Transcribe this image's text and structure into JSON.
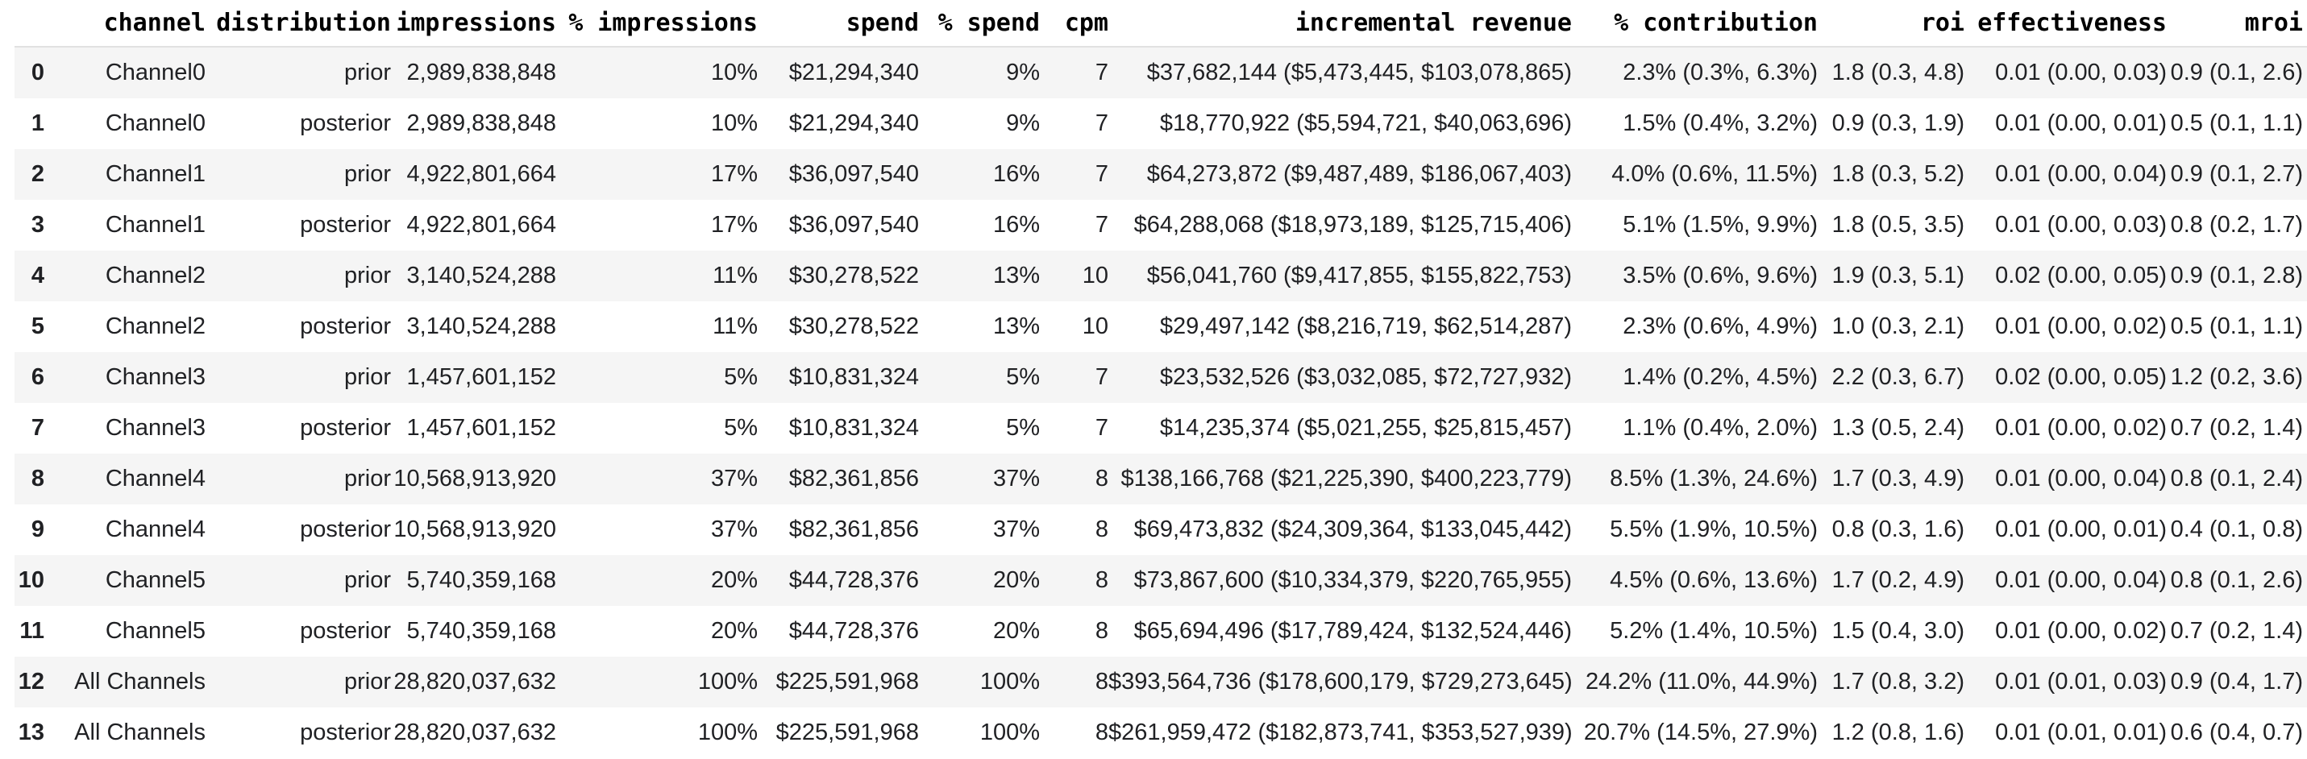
{
  "chart_data": {
    "type": "table",
    "title": "Media summary table (prior vs posterior by channel)",
    "columns": [
      {
        "key": "index",
        "label": ""
      },
      {
        "key": "channel",
        "label": "channel"
      },
      {
        "key": "distribution",
        "label": "distribution"
      },
      {
        "key": "impressions",
        "label": "impressions"
      },
      {
        "key": "pct_impressions",
        "label": "% impressions"
      },
      {
        "key": "spend",
        "label": "spend"
      },
      {
        "key": "pct_spend",
        "label": "% spend"
      },
      {
        "key": "cpm",
        "label": "cpm"
      },
      {
        "key": "incremental_revenue",
        "label": "incremental revenue"
      },
      {
        "key": "pct_contribution",
        "label": "% contribution"
      },
      {
        "key": "roi",
        "label": "roi"
      },
      {
        "key": "effectiveness",
        "label": "effectiveness"
      },
      {
        "key": "mroi",
        "label": "mroi"
      }
    ],
    "rows": [
      {
        "index": "0",
        "channel": "Channel0",
        "distribution": "prior",
        "impressions": "2,989,838,848",
        "pct_impressions": "10%",
        "spend": "$21,294,340",
        "pct_spend": "9%",
        "cpm": "7",
        "incremental_revenue": "$37,682,144 ($5,473,445, $103,078,865)",
        "pct_contribution": "2.3% (0.3%, 6.3%)",
        "roi": "1.8 (0.3, 4.8)",
        "effectiveness": "0.01 (0.00, 0.03)",
        "mroi": "0.9 (0.1, 2.6)"
      },
      {
        "index": "1",
        "channel": "Channel0",
        "distribution": "posterior",
        "impressions": "2,989,838,848",
        "pct_impressions": "10%",
        "spend": "$21,294,340",
        "pct_spend": "9%",
        "cpm": "7",
        "incremental_revenue": "$18,770,922 ($5,594,721, $40,063,696)",
        "pct_contribution": "1.5% (0.4%, 3.2%)",
        "roi": "0.9 (0.3, 1.9)",
        "effectiveness": "0.01 (0.00, 0.01)",
        "mroi": "0.5 (0.1, 1.1)"
      },
      {
        "index": "2",
        "channel": "Channel1",
        "distribution": "prior",
        "impressions": "4,922,801,664",
        "pct_impressions": "17%",
        "spend": "$36,097,540",
        "pct_spend": "16%",
        "cpm": "7",
        "incremental_revenue": "$64,273,872 ($9,487,489, $186,067,403)",
        "pct_contribution": "4.0% (0.6%, 11.5%)",
        "roi": "1.8 (0.3, 5.2)",
        "effectiveness": "0.01 (0.00, 0.04)",
        "mroi": "0.9 (0.1, 2.7)"
      },
      {
        "index": "3",
        "channel": "Channel1",
        "distribution": "posterior",
        "impressions": "4,922,801,664",
        "pct_impressions": "17%",
        "spend": "$36,097,540",
        "pct_spend": "16%",
        "cpm": "7",
        "incremental_revenue": "$64,288,068 ($18,973,189, $125,715,406)",
        "pct_contribution": "5.1% (1.5%, 9.9%)",
        "roi": "1.8 (0.5, 3.5)",
        "effectiveness": "0.01 (0.00, 0.03)",
        "mroi": "0.8 (0.2, 1.7)"
      },
      {
        "index": "4",
        "channel": "Channel2",
        "distribution": "prior",
        "impressions": "3,140,524,288",
        "pct_impressions": "11%",
        "spend": "$30,278,522",
        "pct_spend": "13%",
        "cpm": "10",
        "incremental_revenue": "$56,041,760 ($9,417,855, $155,822,753)",
        "pct_contribution": "3.5% (0.6%, 9.6%)",
        "roi": "1.9 (0.3, 5.1)",
        "effectiveness": "0.02 (0.00, 0.05)",
        "mroi": "0.9 (0.1, 2.8)"
      },
      {
        "index": "5",
        "channel": "Channel2",
        "distribution": "posterior",
        "impressions": "3,140,524,288",
        "pct_impressions": "11%",
        "spend": "$30,278,522",
        "pct_spend": "13%",
        "cpm": "10",
        "incremental_revenue": "$29,497,142 ($8,216,719, $62,514,287)",
        "pct_contribution": "2.3% (0.6%, 4.9%)",
        "roi": "1.0 (0.3, 2.1)",
        "effectiveness": "0.01 (0.00, 0.02)",
        "mroi": "0.5 (0.1, 1.1)"
      },
      {
        "index": "6",
        "channel": "Channel3",
        "distribution": "prior",
        "impressions": "1,457,601,152",
        "pct_impressions": "5%",
        "spend": "$10,831,324",
        "pct_spend": "5%",
        "cpm": "7",
        "incremental_revenue": "$23,532,526 ($3,032,085, $72,727,932)",
        "pct_contribution": "1.4% (0.2%, 4.5%)",
        "roi": "2.2 (0.3, 6.7)",
        "effectiveness": "0.02 (0.00, 0.05)",
        "mroi": "1.2 (0.2, 3.6)"
      },
      {
        "index": "7",
        "channel": "Channel3",
        "distribution": "posterior",
        "impressions": "1,457,601,152",
        "pct_impressions": "5%",
        "spend": "$10,831,324",
        "pct_spend": "5%",
        "cpm": "7",
        "incremental_revenue": "$14,235,374 ($5,021,255, $25,815,457)",
        "pct_contribution": "1.1% (0.4%, 2.0%)",
        "roi": "1.3 (0.5, 2.4)",
        "effectiveness": "0.01 (0.00, 0.02)",
        "mroi": "0.7 (0.2, 1.4)"
      },
      {
        "index": "8",
        "channel": "Channel4",
        "distribution": "prior",
        "impressions": "10,568,913,920",
        "pct_impressions": "37%",
        "spend": "$82,361,856",
        "pct_spend": "37%",
        "cpm": "8",
        "incremental_revenue": "$138,166,768 ($21,225,390, $400,223,779)",
        "pct_contribution": "8.5% (1.3%, 24.6%)",
        "roi": "1.7 (0.3, 4.9)",
        "effectiveness": "0.01 (0.00, 0.04)",
        "mroi": "0.8 (0.1, 2.4)"
      },
      {
        "index": "9",
        "channel": "Channel4",
        "distribution": "posterior",
        "impressions": "10,568,913,920",
        "pct_impressions": "37%",
        "spend": "$82,361,856",
        "pct_spend": "37%",
        "cpm": "8",
        "incremental_revenue": "$69,473,832 ($24,309,364, $133,045,442)",
        "pct_contribution": "5.5% (1.9%, 10.5%)",
        "roi": "0.8 (0.3, 1.6)",
        "effectiveness": "0.01 (0.00, 0.01)",
        "mroi": "0.4 (0.1, 0.8)"
      },
      {
        "index": "10",
        "channel": "Channel5",
        "distribution": "prior",
        "impressions": "5,740,359,168",
        "pct_impressions": "20%",
        "spend": "$44,728,376",
        "pct_spend": "20%",
        "cpm": "8",
        "incremental_revenue": "$73,867,600 ($10,334,379, $220,765,955)",
        "pct_contribution": "4.5% (0.6%, 13.6%)",
        "roi": "1.7 (0.2, 4.9)",
        "effectiveness": "0.01 (0.00, 0.04)",
        "mroi": "0.8 (0.1, 2.6)"
      },
      {
        "index": "11",
        "channel": "Channel5",
        "distribution": "posterior",
        "impressions": "5,740,359,168",
        "pct_impressions": "20%",
        "spend": "$44,728,376",
        "pct_spend": "20%",
        "cpm": "8",
        "incremental_revenue": "$65,694,496 ($17,789,424, $132,524,446)",
        "pct_contribution": "5.2% (1.4%, 10.5%)",
        "roi": "1.5 (0.4, 3.0)",
        "effectiveness": "0.01 (0.00, 0.02)",
        "mroi": "0.7 (0.2, 1.4)"
      },
      {
        "index": "12",
        "channel": "All Channels",
        "distribution": "prior",
        "impressions": "28,820,037,632",
        "pct_impressions": "100%",
        "spend": "$225,591,968",
        "pct_spend": "100%",
        "cpm": "8",
        "incremental_revenue": "$393,564,736 ($178,600,179, $729,273,645)",
        "pct_contribution": "24.2% (11.0%, 44.9%)",
        "roi": "1.7 (0.8, 3.2)",
        "effectiveness": "0.01 (0.01, 0.03)",
        "mroi": "0.9 (0.4, 1.7)"
      },
      {
        "index": "13",
        "channel": "All Channels",
        "distribution": "posterior",
        "impressions": "28,820,037,632",
        "pct_impressions": "100%",
        "spend": "$225,591,968",
        "pct_spend": "100%",
        "cpm": "8",
        "incremental_revenue": "$261,959,472 ($182,873,741, $353,527,939)",
        "pct_contribution": "20.7% (14.5%, 27.9%)",
        "roi": "1.2 (0.8, 1.6)",
        "effectiveness": "0.01 (0.01, 0.01)",
        "mroi": "0.6 (0.4, 0.7)"
      }
    ],
    "layout": {
      "striped_rows": true,
      "stripe_on": "even indices (0,2,4,...)",
      "alignment": "right"
    }
  },
  "colors": {
    "background": "#ffffff",
    "row_stripe": "#f5f5f5",
    "header_border": "#e1e1e1",
    "body_text": "#202124",
    "header_text": "#000000"
  }
}
